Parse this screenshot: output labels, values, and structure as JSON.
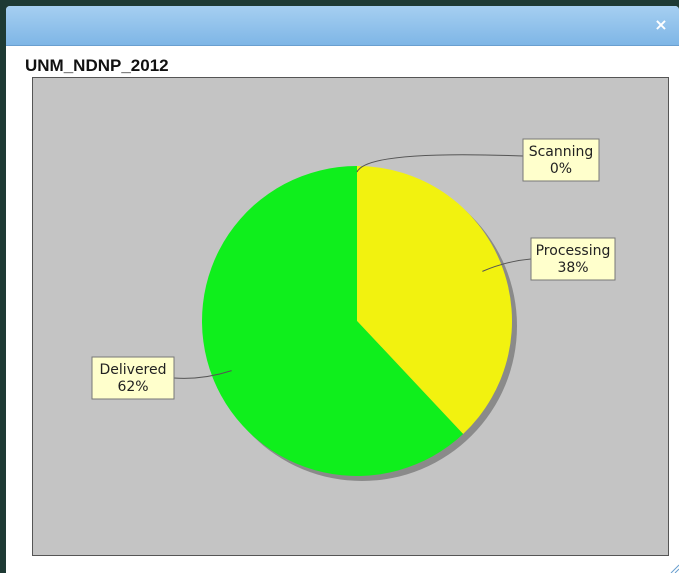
{
  "window": {
    "close_glyph": "×"
  },
  "chart_data": {
    "type": "pie",
    "title": "UNM_NDNP_2012",
    "slices": [
      {
        "name": "Scanning",
        "percent": 0,
        "percent_label": "0%",
        "color": "#ff0000",
        "label_position": "top-right"
      },
      {
        "name": "Processing",
        "percent": 38,
        "percent_label": "38%",
        "color": "#f2f20f",
        "label_position": "right"
      },
      {
        "name": "Delivered",
        "percent": 62,
        "percent_label": "62%",
        "color": "#0fef1c",
        "label_position": "left"
      }
    ],
    "plot_background": "#c4c4c4",
    "label_background": "#ffffcc"
  }
}
